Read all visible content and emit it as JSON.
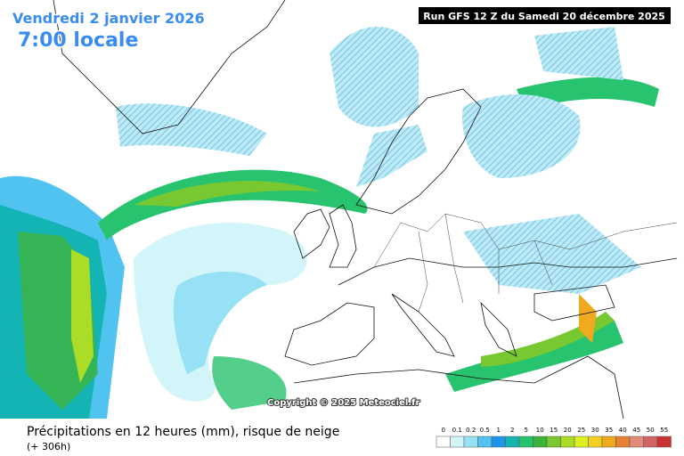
{
  "header": {
    "date": "Vendredi 2 janvier 2026",
    "time": "7:00 locale",
    "run": "Run GFS 12 Z du Samedi 20 décembre 2025"
  },
  "copyright": "Copyright © 2025 Meteociel.fr",
  "footer": {
    "title": "Précipitations en 12 heures (mm), risque de neige",
    "lead": "(+ 306h)"
  },
  "legend": [
    {
      "label": "0",
      "color": "#ffffff"
    },
    {
      "label": "0.1",
      "color": "#d2f5fa"
    },
    {
      "label": "0.2",
      "color": "#96e1f5"
    },
    {
      "label": "0.5",
      "color": "#50c3f0"
    },
    {
      "label": "1",
      "color": "#1e96e6"
    },
    {
      "label": "2",
      "color": "#14b4b4"
    },
    {
      "label": "5",
      "color": "#28c36e"
    },
    {
      "label": "10",
      "color": "#3cb43c"
    },
    {
      "label": "15",
      "color": "#78c832"
    },
    {
      "label": "20",
      "color": "#aadc28"
    },
    {
      "label": "25",
      "color": "#dcf01e"
    },
    {
      "label": "30",
      "color": "#f0d21e"
    },
    {
      "label": "35",
      "color": "#f0aa1e"
    },
    {
      "label": "40",
      "color": "#eb8232"
    },
    {
      "label": "45",
      "color": "#e18c78"
    },
    {
      "label": "50",
      "color": "#d26464"
    },
    {
      "label": "55",
      "color": "#c83232"
    }
  ]
}
